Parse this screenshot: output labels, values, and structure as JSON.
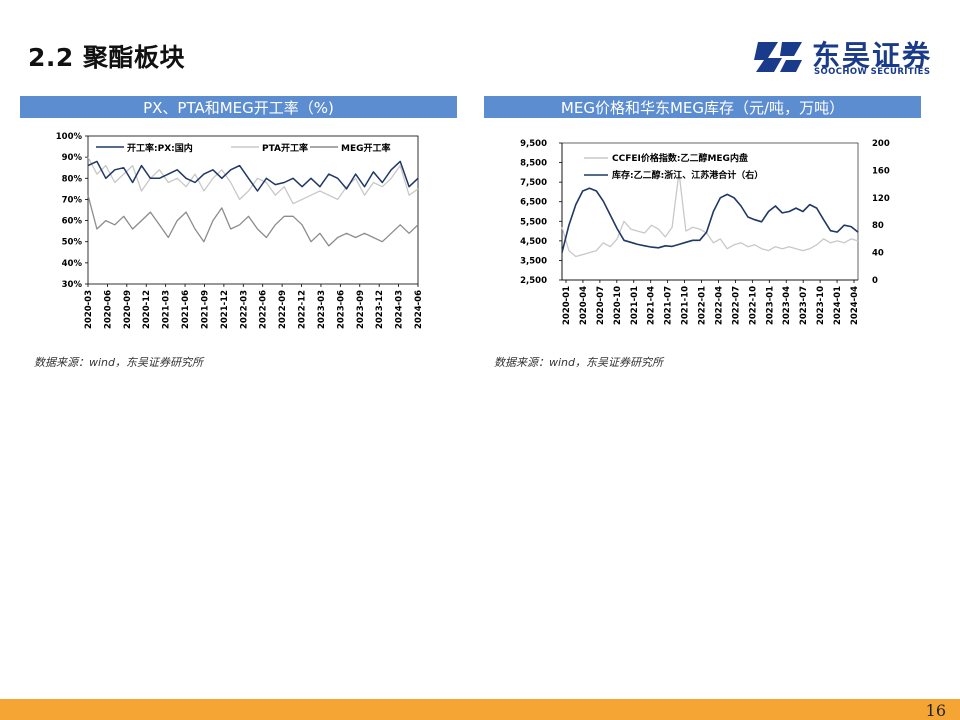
{
  "page": {
    "title": "2.2 聚酯板块",
    "page_number": "16"
  },
  "logo": {
    "cn": "东吴证券",
    "en": "SOOCHOW SECURITIES",
    "color": "#1a3a8a"
  },
  "left_panel": {
    "header": "PX、PTA和MEG开工率（%)",
    "source": "数据来源：wind，东吴证券研究所",
    "chart_data": {
      "type": "line",
      "y_ticks": [
        "100%",
        "90%",
        "80%",
        "70%",
        "60%",
        "50%",
        "40%",
        "30%"
      ],
      "ylim": [
        30,
        100
      ],
      "x_labels": [
        "2020-03",
        "2020-06",
        "2020-09",
        "2020-12",
        "2021-03",
        "2021-06",
        "2021-09",
        "2021-12",
        "2022-03",
        "2022-06",
        "2022-09",
        "2022-12",
        "2023-03",
        "2023-06",
        "2023-09",
        "2023-12",
        "2024-03",
        "2024-06"
      ],
      "legend_position": "top",
      "series": [
        {
          "name": "开工率:PX:国内",
          "color": "#1f3864",
          "values": [
            86,
            88,
            80,
            84,
            85,
            78,
            86,
            80,
            80,
            82,
            84,
            80,
            78,
            82,
            84,
            80,
            84,
            86,
            80,
            74,
            80,
            77,
            78,
            80,
            76,
            80,
            76,
            82,
            80,
            75,
            82,
            76,
            83,
            78,
            84,
            88,
            76,
            80
          ]
        },
        {
          "name": "PTA开工率",
          "color": "#c8c8c8",
          "values": [
            90,
            82,
            86,
            78,
            82,
            86,
            74,
            80,
            84,
            78,
            80,
            76,
            82,
            74,
            80,
            84,
            78,
            70,
            74,
            80,
            78,
            72,
            76,
            68,
            70,
            72,
            74,
            72,
            70,
            76,
            80,
            72,
            78,
            76,
            80,
            86,
            72,
            75
          ]
        },
        {
          "name": "MEG开工率",
          "color": "#8c8c8c",
          "values": [
            72,
            56,
            60,
            58,
            62,
            56,
            60,
            64,
            58,
            52,
            60,
            64,
            56,
            50,
            60,
            66,
            56,
            58,
            62,
            56,
            52,
            58,
            62,
            62,
            58,
            50,
            54,
            48,
            52,
            54,
            52,
            54,
            52,
            50,
            54,
            58,
            54,
            58
          ]
        }
      ]
    }
  },
  "right_panel": {
    "header": "MEG价格和华东MEG库存（元/吨，万吨）",
    "source": "数据来源：wind，东吴证券研究所",
    "chart_data": {
      "type": "line",
      "y_ticks_left": [
        "9,500",
        "8,500",
        "7,500",
        "6,500",
        "5,500",
        "4,500",
        "3,500",
        "2,500"
      ],
      "ylim_left": [
        2500,
        9500
      ],
      "y_ticks_right": [
        "200",
        "160",
        "120",
        "80",
        "40",
        "0"
      ],
      "ylim_right": [
        0,
        200
      ],
      "x_labels": [
        "2020-01",
        "2020-04",
        "2020-07",
        "2020-10",
        "2021-01",
        "2021-04",
        "2021-07",
        "2021-10",
        "2022-01",
        "2022-04",
        "2022-07",
        "2022-10",
        "2023-01",
        "2023-04",
        "2023-07",
        "2023-10",
        "2024-01",
        "2024-04"
      ],
      "legend_position": "top",
      "series": [
        {
          "name": "CCFEI价格指数:乙二醇MEG内盘",
          "color": "#c8c8c8",
          "axis": "left",
          "values": [
            5200,
            4000,
            3700,
            3800,
            3900,
            4000,
            4400,
            4200,
            4600,
            5500,
            5100,
            5000,
            4900,
            5300,
            5100,
            4700,
            5200,
            8000,
            5000,
            5200,
            5100,
            4900,
            4400,
            4600,
            4100,
            4300,
            4400,
            4200,
            4300,
            4100,
            4000,
            4200,
            4100,
            4200,
            4100,
            4000,
            4100,
            4300,
            4600,
            4400,
            4500,
            4400,
            4600,
            4500
          ]
        },
        {
          "name": "库存:乙二醇:浙江、江苏港合计（右）",
          "color": "#1f3864",
          "axis": "right",
          "values": [
            40,
            80,
            110,
            130,
            134,
            130,
            115,
            95,
            75,
            58,
            55,
            52,
            50,
            48,
            47,
            50,
            49,
            52,
            55,
            58,
            58,
            70,
            100,
            120,
            125,
            120,
            108,
            92,
            88,
            85,
            100,
            108,
            98,
            100,
            105,
            100,
            110,
            105,
            88,
            72,
            70,
            80,
            78,
            70
          ]
        }
      ]
    }
  }
}
